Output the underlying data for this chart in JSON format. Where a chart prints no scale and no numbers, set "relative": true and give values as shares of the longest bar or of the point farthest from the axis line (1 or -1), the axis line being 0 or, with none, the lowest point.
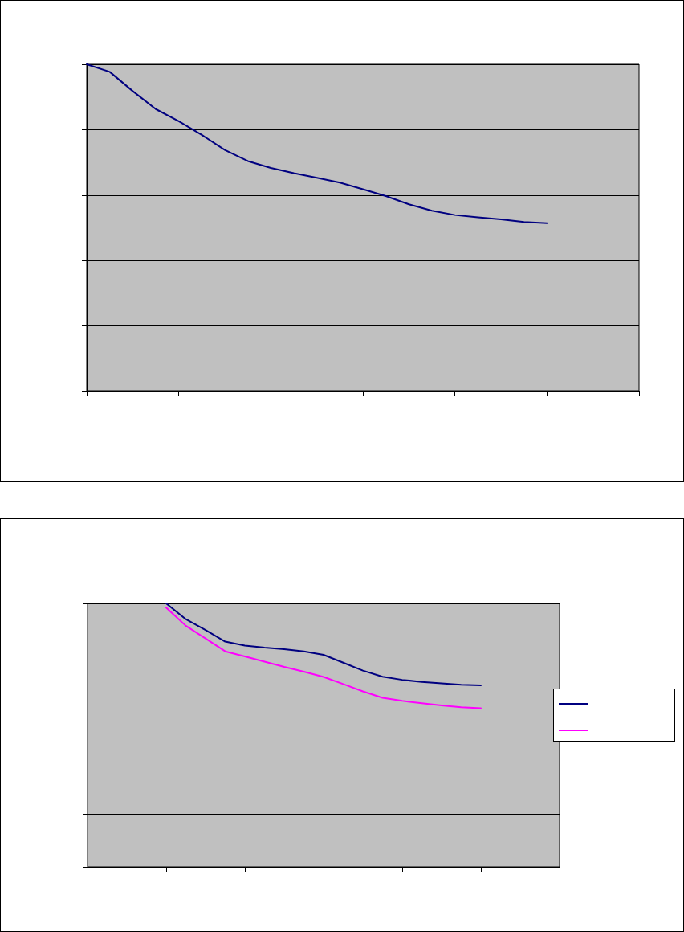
{
  "chart_data": [
    {
      "type": "line",
      "relative": true,
      "grid": "y",
      "marker": "none",
      "line_style": "solid",
      "categories": [
        null,
        null,
        null,
        null,
        null,
        null,
        null,
        null,
        null,
        null,
        null,
        null,
        null,
        null,
        null,
        null,
        null,
        null,
        null,
        null,
        null,
        null,
        null,
        null,
        null
      ],
      "series": [
        {
          "color": "#000080",
          "values": [
            1,
            0.977,
            0.918,
            0.863,
            0.826,
            0.784,
            0.738,
            0.704,
            0.683,
            0.667,
            0.653,
            0.638,
            0.618,
            0.597,
            0.572,
            0.552,
            0.539,
            0.532,
            0.526,
            0.518,
            0.514,
            null,
            null,
            null,
            null
          ]
        }
      ]
    },
    {
      "type": "line",
      "relative": true,
      "grid": "y",
      "marker": "none",
      "line_style": "solid",
      "categories": [
        null,
        null,
        null,
        null,
        null,
        null,
        null,
        null,
        null,
        null,
        null,
        null,
        null,
        null,
        null,
        null,
        null,
        null,
        null,
        null,
        null,
        null,
        null,
        null,
        null
      ],
      "series": [
        {
          "color": "#000080",
          "values": [
            null,
            null,
            null,
            null,
            1,
            0.94,
            0.899,
            0.855,
            0.84,
            0.832,
            0.826,
            0.818,
            0.805,
            0.775,
            0.745,
            0.722,
            0.71,
            0.702,
            0.697,
            0.691,
            0.689,
            null,
            null,
            null,
            null
          ]
        },
        {
          "color": "#ff00ff",
          "values": [
            null,
            null,
            null,
            null,
            0.984,
            0.915,
            0.867,
            0.818,
            0.799,
            0.779,
            0.759,
            0.741,
            0.721,
            0.694,
            0.666,
            0.642,
            0.63,
            0.621,
            0.613,
            0.606,
            0.602,
            null,
            null,
            null,
            null
          ]
        }
      ]
    }
  ]
}
